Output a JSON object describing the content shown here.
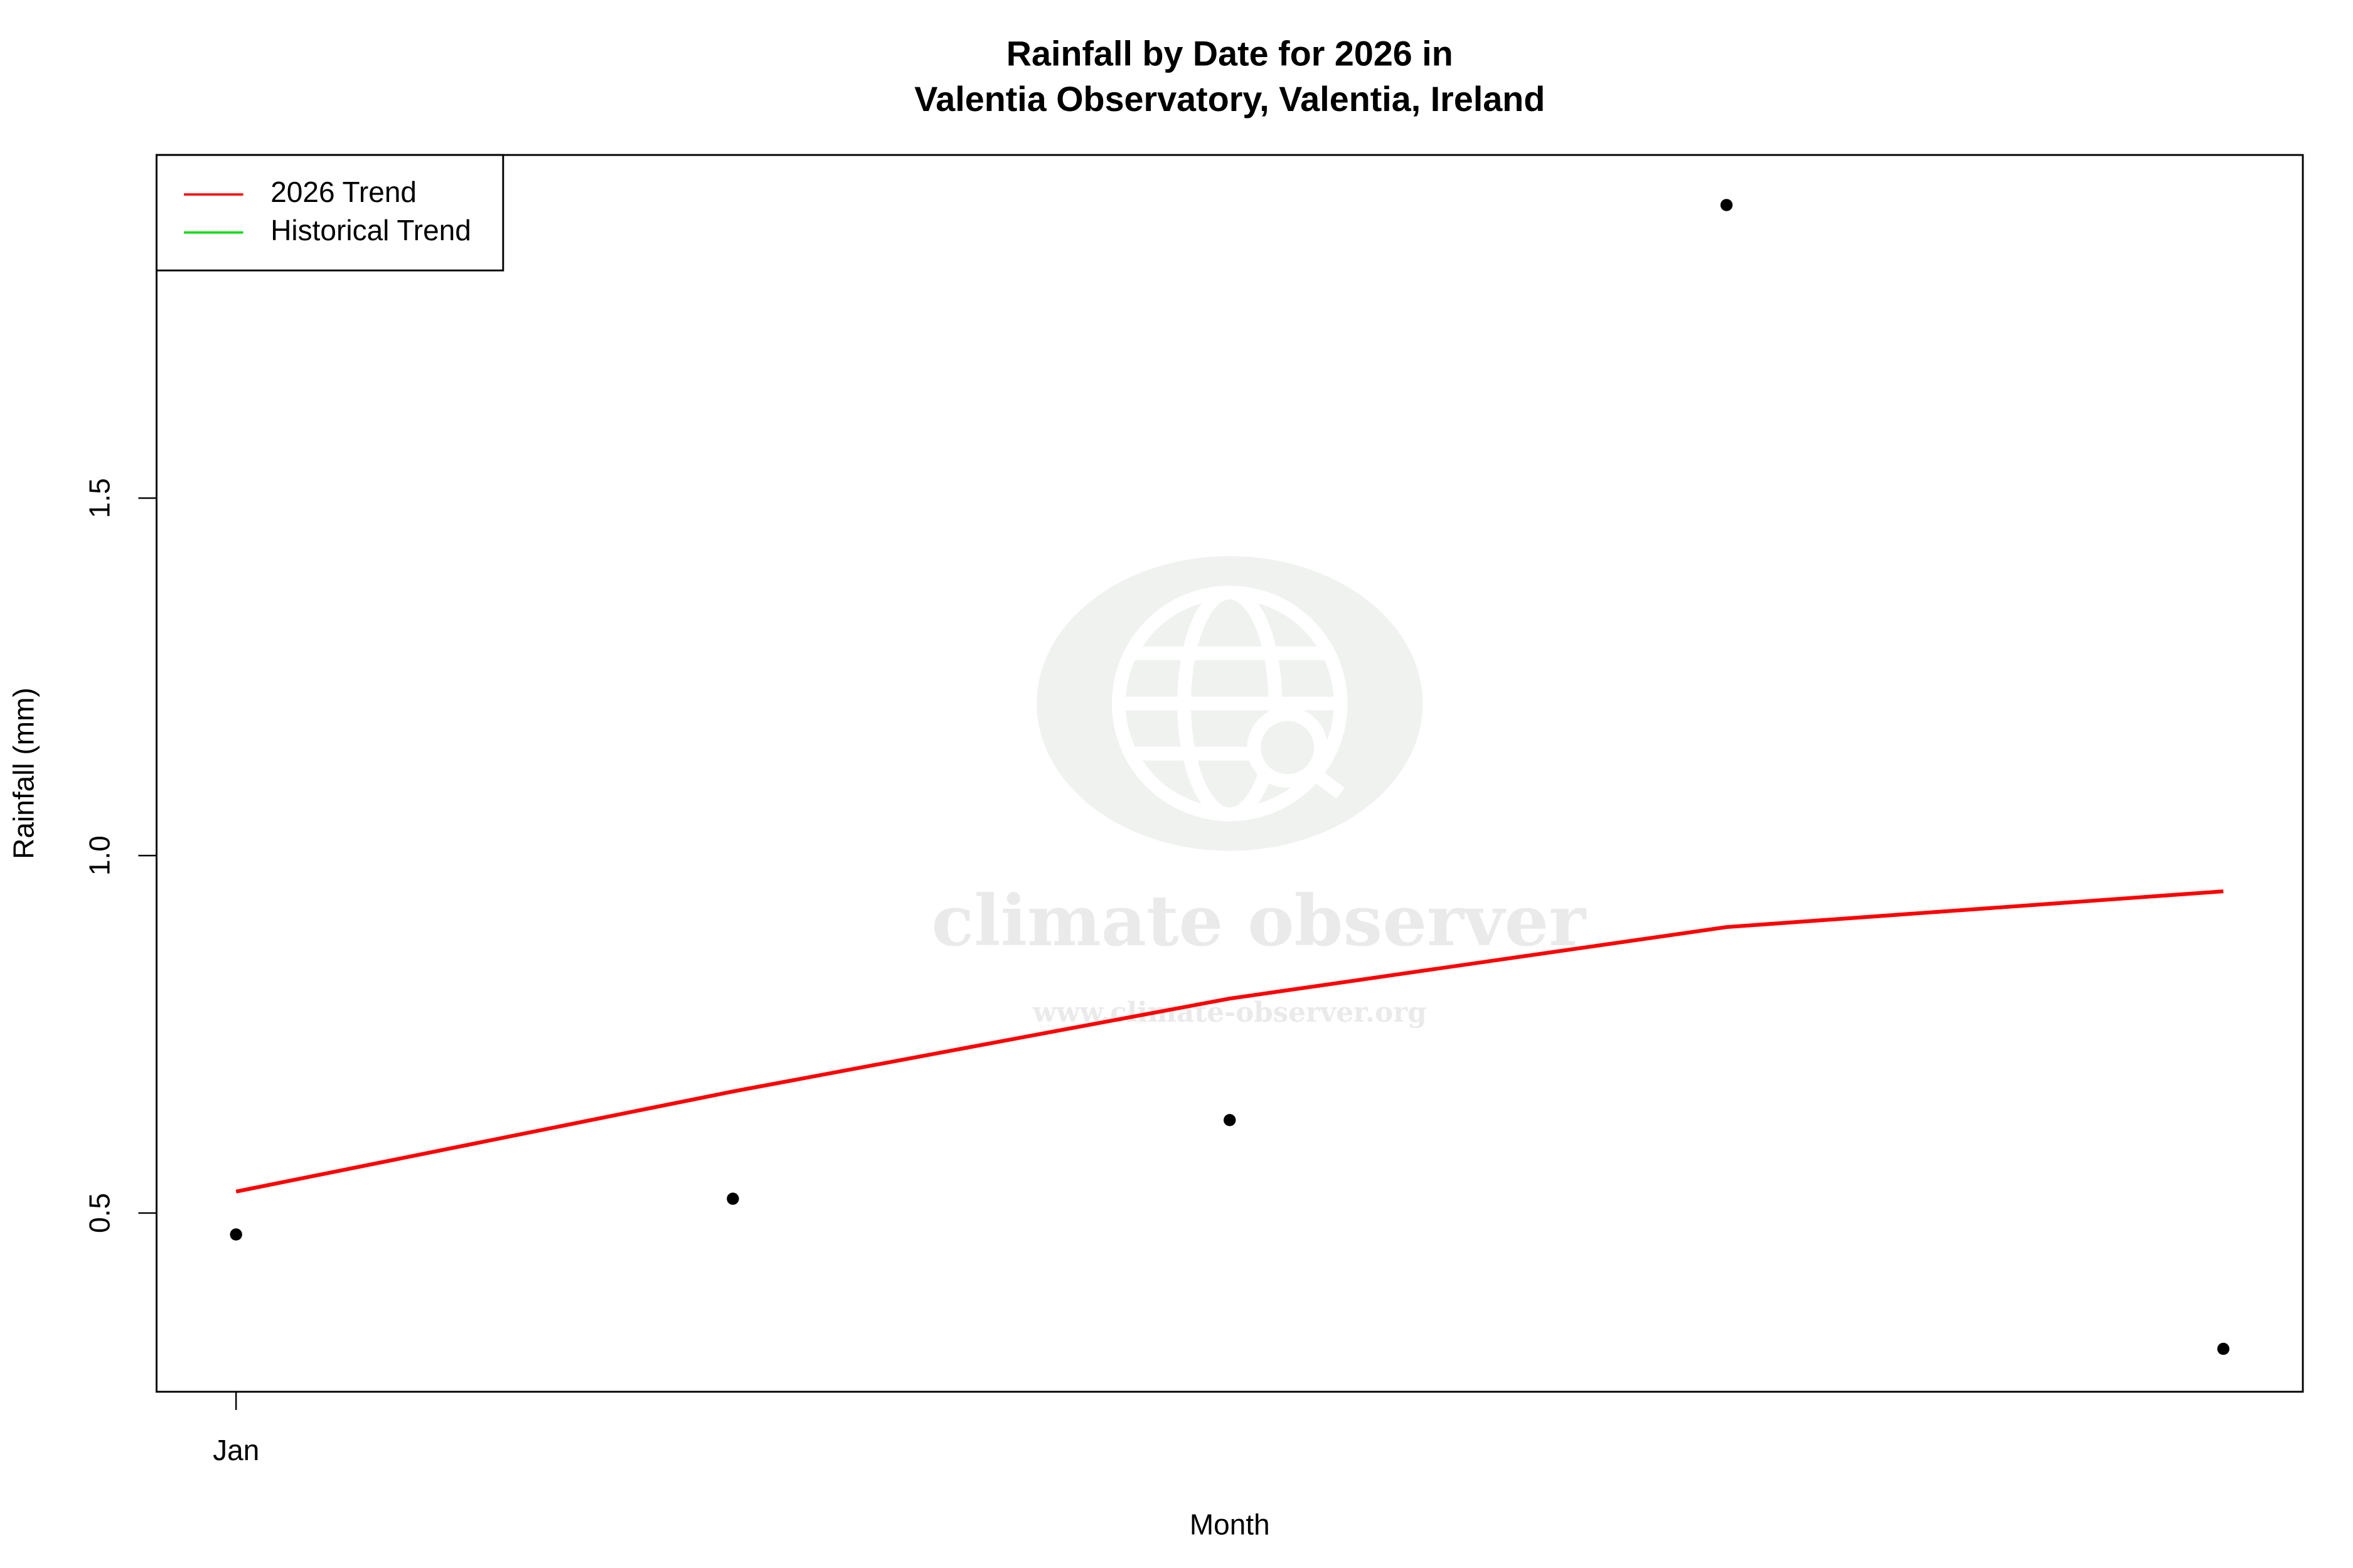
{
  "chart_data": {
    "type": "scatter",
    "title": "Rainfall by Date for 2026 in",
    "subtitle": "Valentia Observatory, Valentia, Ireland",
    "x_label": "Month",
    "y_label": "Rainfall (mm)",
    "categories": [
      "Jan",
      null,
      null,
      null,
      null
    ],
    "values": [
      0.47,
      0.52,
      0.63,
      1.91,
      0.31
    ],
    "point_color": "#000000",
    "series": [
      {
        "name": "2026 Trend",
        "color": "#ff0000",
        "values": [
          0.53,
          0.67,
          0.8,
          0.9,
          0.95
        ]
      },
      {
        "name": "Historical Trend",
        "color": "#00e000",
        "values": [
          null,
          null,
          null,
          null,
          null
        ]
      }
    ],
    "ylim": [
      0.25,
      1.98
    ],
    "yticks": [
      0.5,
      {
        "value": 1,
        "label": "1.0"
      },
      1.5
    ],
    "legend": "top-left",
    "watermark": {
      "name": "climate observer",
      "url": "www.climate-observer.org"
    }
  }
}
